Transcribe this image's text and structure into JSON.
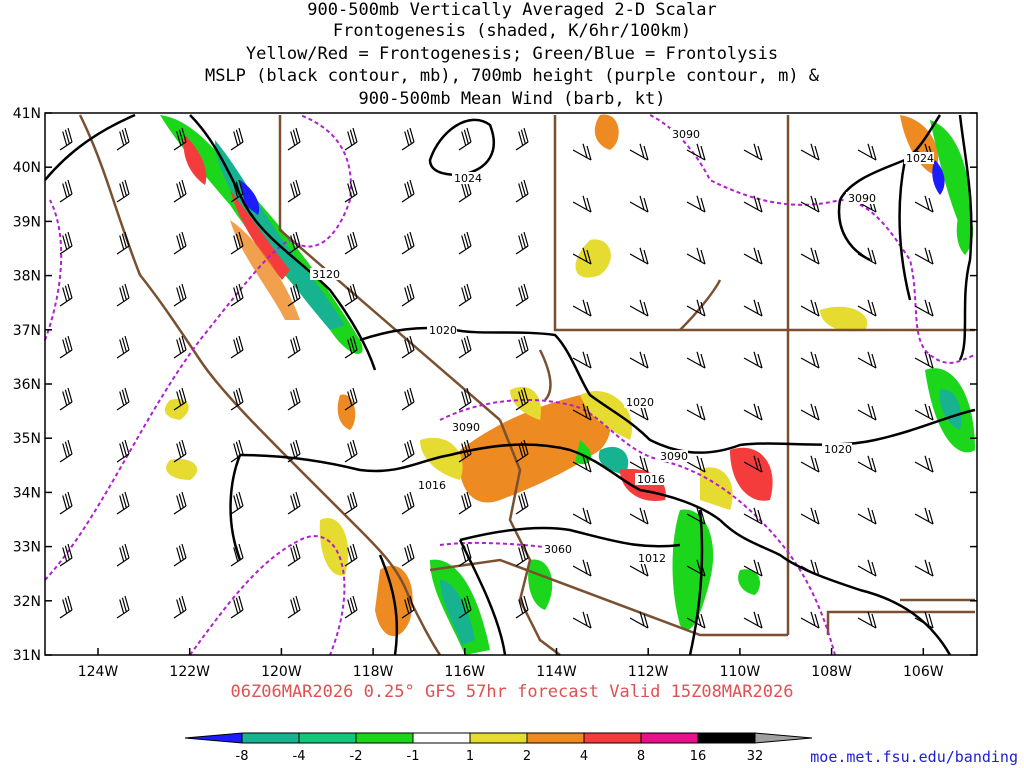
{
  "title": {
    "lines": [
      "900-500mb Vertically Averaged 2-D Scalar",
      "Frontogenesis (shaded, K/6hr/100km)",
      "Yellow/Red = Frontogenesis;  Green/Blue = Frontolysis",
      "MSLP (black contour, mb), 700mb height (purple contour, m) &",
      "900-500mb Mean Wind (barb, kt)"
    ]
  },
  "axes": {
    "lat_labels": [
      "41N",
      "40N",
      "39N",
      "38N",
      "37N",
      "36N",
      "35N",
      "34N",
      "33N",
      "32N",
      "31N"
    ],
    "lon_labels": [
      "124W",
      "122W",
      "120W",
      "118W",
      "116W",
      "114W",
      "112W",
      "110W",
      "108W",
      "106W"
    ]
  },
  "contour_labels": {
    "mslp": [
      "1024",
      "1024",
      "1020",
      "1020",
      "1020",
      "1016",
      "1016",
      "1012"
    ],
    "height": [
      "3090",
      "3090",
      "3120",
      "3090",
      "3090",
      "3060"
    ]
  },
  "footer": "06Z06MAR2026 0.25° GFS 57hr forecast Valid 15Z08MAR2026",
  "colorbar": {
    "labels": [
      "-8",
      "-4",
      "-2",
      "-1",
      "1",
      "2",
      "4",
      "8",
      "16",
      "32"
    ],
    "colors": [
      "#1c1cff",
      "#17b390",
      "#10c77a",
      "#1cd61c",
      "#ffffff",
      "#e6db30",
      "#ee8a22",
      "#f53c3c",
      "#e8108c",
      "#000000",
      "#a0a0a0"
    ]
  },
  "url": "moe.met.fsu.edu/banding",
  "colors": {
    "mslp": "#000000",
    "height": "#b020d0",
    "borders": "#7a5030",
    "frontogenesis": "#e6db30",
    "frontolysis": "#10c77a"
  }
}
